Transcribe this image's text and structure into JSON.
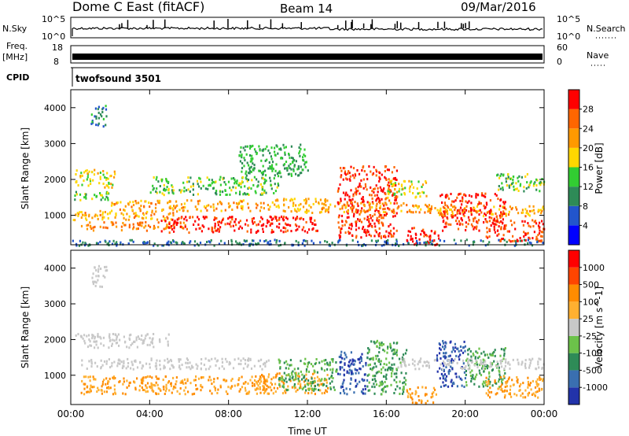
{
  "header": {
    "title": "Dome C East (fitACF)",
    "beam": "Beam 14",
    "date": "09/Mar/2016"
  },
  "status_panels": {
    "nsky_label": "N.Sky",
    "nsky_ticks": [
      "10^5",
      "10^0"
    ],
    "nsearch_label": "N.Search",
    "nsearch_ticks": [
      "10^5",
      "10^0"
    ],
    "freq_label": "Freq.",
    "freq_unit": "[MHz]",
    "freq_ticks": [
      "18",
      "8"
    ],
    "nave_label": "Nave",
    "nave_ticks": [
      "60",
      "0"
    ],
    "cpid_label": "CPID",
    "cpid_value": "twofsound 3501"
  },
  "chart_data": [
    {
      "type": "heatmap",
      "title": "",
      "xlabel": "",
      "ylabel": "Slant Range [km]",
      "x_tick_labels": [
        "00:00",
        "04:00",
        "08:00",
        "12:00",
        "16:00",
        "20:00",
        "00:00"
      ],
      "y_tick_labels": [
        "1000",
        "2000",
        "3000",
        "4000"
      ],
      "ylim": [
        180,
        4500
      ],
      "colorbar": {
        "label": "Power [dB]",
        "tick_labels": [
          "4",
          "8",
          "12",
          "16",
          "20",
          "24",
          "28"
        ],
        "range": [
          0,
          32
        ],
        "colors": [
          "#0000ff",
          "#2255cc",
          "#2e8b57",
          "#32cd32",
          "#ffd700",
          "#ff9900",
          "#ff6600",
          "#ff0000"
        ]
      },
      "patches": [
        {
          "t": [
            1.0,
            1.8
          ],
          "r": [
            3500,
            4100
          ],
          "v": 9
        },
        {
          "t": [
            0.2,
            2.2
          ],
          "r": [
            1800,
            2300
          ],
          "v": 18
        },
        {
          "t": [
            0.0,
            2.0
          ],
          "r": [
            1450,
            1700
          ],
          "v": 13
        },
        {
          "t": [
            0.1,
            5.5
          ],
          "r": [
            900,
            1150
          ],
          "v": 21
        },
        {
          "t": [
            0.5,
            6.0
          ],
          "r": [
            600,
            850
          ],
          "v": 24
        },
        {
          "t": [
            2.0,
            10.0
          ],
          "r": [
            1150,
            1450
          ],
          "v": 22
        },
        {
          "t": [
            4.0,
            10.5
          ],
          "r": [
            1600,
            2100
          ],
          "v": 14
        },
        {
          "t": [
            4.5,
            12.5
          ],
          "r": [
            550,
            1000
          ],
          "v": 30
        },
        {
          "t": [
            10.0,
            13.0
          ],
          "r": [
            1100,
            1500
          ],
          "v": 20
        },
        {
          "t": [
            8.5,
            12.0
          ],
          "r": [
            2100,
            3000
          ],
          "v": 12
        },
        {
          "t": [
            13.5,
            16.5
          ],
          "r": [
            400,
            2400
          ],
          "v": 29
        },
        {
          "t": [
            12.5,
            18.5
          ],
          "r": [
            1100,
            1400
          ],
          "v": 22
        },
        {
          "t": [
            16.0,
            18.0
          ],
          "r": [
            1500,
            2000
          ],
          "v": 17
        },
        {
          "t": [
            17.0,
            18.7
          ],
          "r": [
            200,
            700
          ],
          "v": 30
        },
        {
          "t": [
            18.5,
            24.0
          ],
          "r": [
            1000,
            1300
          ],
          "v": 21
        },
        {
          "t": [
            18.7,
            22.0
          ],
          "r": [
            600,
            1650
          ],
          "v": 29
        },
        {
          "t": [
            21.0,
            24.0
          ],
          "r": [
            300,
            900
          ],
          "v": 28
        },
        {
          "t": [
            21.5,
            24.0
          ],
          "r": [
            1700,
            2200
          ],
          "v": 14
        },
        {
          "t": [
            0.0,
            24.0
          ],
          "r": [
            180,
            350
          ],
          "v": 8
        }
      ]
    },
    {
      "type": "heatmap",
      "title": "",
      "xlabel": "Time UT",
      "ylabel": "Slant Range [km]",
      "x_tick_labels": [
        "00:00",
        "04:00",
        "08:00",
        "12:00",
        "16:00",
        "20:00",
        "00:00"
      ],
      "y_tick_labels": [
        "1000",
        "2000",
        "3000",
        "4000"
      ],
      "ylim": [
        180,
        4500
      ],
      "colorbar": {
        "label": "Velocity [m s^-1]",
        "tick_labels": [
          "1000",
          "500",
          "100",
          "25",
          "-25",
          "-100",
          "-500",
          "-1000"
        ],
        "colors": [
          "#2233aa",
          "#3a6fb0",
          "#2e8b57",
          "#6cc24a",
          "#c8c8c8",
          "#ffb030",
          "#ff8c00",
          "#ff4500",
          "#ff0000"
        ]
      },
      "patches": [
        {
          "t": [
            1.0,
            1.8
          ],
          "r": [
            3500,
            4100
          ],
          "v": "gray"
        },
        {
          "t": [
            0.2,
            5.0
          ],
          "r": [
            1800,
            2200
          ],
          "v": "gray"
        },
        {
          "t": [
            0.5,
            10.0
          ],
          "r": [
            1200,
            1500
          ],
          "v": "gray"
        },
        {
          "t": [
            0.5,
            10.0
          ],
          "r": [
            500,
            1000
          ],
          "v": "orange"
        },
        {
          "t": [
            9.5,
            13.0
          ],
          "r": [
            500,
            1100
          ],
          "v": "orange"
        },
        {
          "t": [
            10.5,
            13.5
          ],
          "r": [
            600,
            1500
          ],
          "v": "green"
        },
        {
          "t": [
            13.5,
            15.0
          ],
          "r": [
            500,
            1700
          ],
          "v": "blue"
        },
        {
          "t": [
            15.0,
            17.0
          ],
          "r": [
            500,
            2000
          ],
          "v": "green"
        },
        {
          "t": [
            17.0,
            18.5
          ],
          "r": [
            250,
            700
          ],
          "v": "orange"
        },
        {
          "t": [
            18.5,
            20.0
          ],
          "r": [
            700,
            2000
          ],
          "v": "blue"
        },
        {
          "t": [
            20.0,
            22.0
          ],
          "r": [
            700,
            1800
          ],
          "v": "green"
        },
        {
          "t": [
            21.0,
            24.0
          ],
          "r": [
            400,
            1000
          ],
          "v": "orange"
        },
        {
          "t": [
            16.5,
            24.0
          ],
          "r": [
            1200,
            1500
          ],
          "v": "gray"
        }
      ]
    }
  ]
}
